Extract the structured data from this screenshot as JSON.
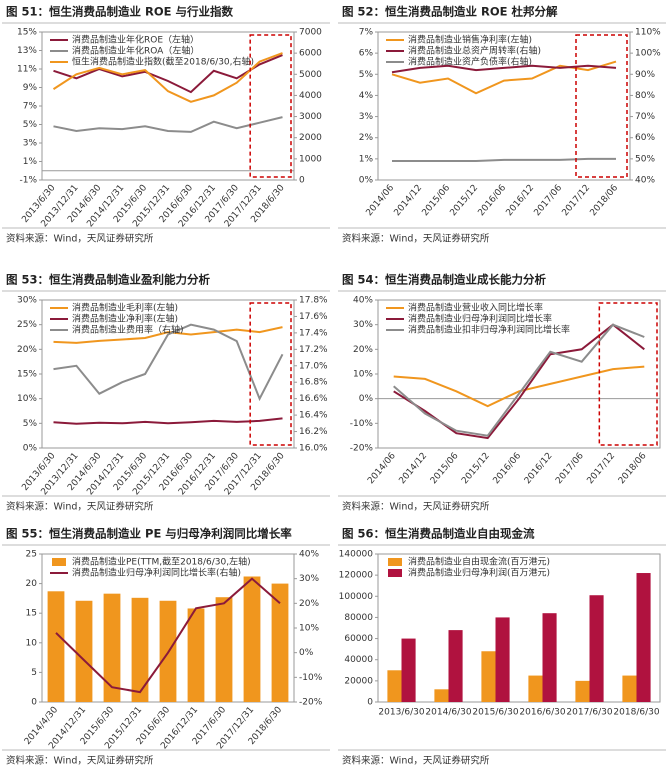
{
  "chart_data": [
    {
      "type": "line",
      "title": "图 51：恒生消费品制造业 ROE 与行业指数",
      "source": "资料来源：Wind，天风证券研究所",
      "categories": [
        "2013/6/30",
        "2013/12/31",
        "2014/6/30",
        "2014/12/31",
        "2015/6/30",
        "2015/12/31",
        "2016/6/30",
        "2016/12/31",
        "2017/6/30",
        "2017/12/31",
        "2018/6/30"
      ],
      "ylim": [
        -1,
        15
      ],
      "yticks": [
        {
          "value": -1,
          "label": "-1%"
        },
        {
          "value": 1,
          "label": "1%"
        },
        {
          "value": 3,
          "label": "3%"
        },
        {
          "value": 5,
          "label": "5%"
        },
        {
          "value": 7,
          "label": "7%"
        },
        {
          "value": 9,
          "label": "9%"
        },
        {
          "value": 11,
          "label": "11%"
        },
        {
          "value": 13,
          "label": "13%"
        },
        {
          "value": 15,
          "label": "15%"
        }
      ],
      "y2lim": [
        0,
        7000
      ],
      "y2ticks": [
        0,
        1000,
        2000,
        3000,
        4000,
        5000,
        6000,
        7000
      ],
      "series": [
        {
          "name": "消费品制造业年化ROE（左轴）",
          "color": "#8b1a3a",
          "values": [
            10.8,
            10.0,
            11.0,
            10.2,
            10.7,
            9.7,
            8.5,
            10.8,
            10.0,
            11.5,
            12.5
          ]
        },
        {
          "name": "消费品制造业年化ROA（左轴）",
          "color": "#8c8c8c",
          "values": [
            4.8,
            4.3,
            4.6,
            4.5,
            4.8,
            4.3,
            4.2,
            5.3,
            4.6,
            5.2,
            5.8
          ]
        },
        {
          "name": "恒生消费品制造业指数(截至2018/6/30,右轴)",
          "color": "#f0961e",
          "axis": "y2",
          "values": [
            4300,
            5000,
            5300,
            5000,
            5200,
            4200,
            3700,
            4000,
            4600,
            5600,
            6000
          ]
        }
      ]
    },
    {
      "type": "line",
      "title": "图 52：恒生消费品制造业 ROE 杜邦分解",
      "source": "资料来源：Wind，天风证券研究所",
      "categories": [
        "2014/06",
        "2014/12",
        "2015/06",
        "2015/12",
        "2016/06",
        "2016/12",
        "2017/06",
        "2017/12",
        "2018/06"
      ],
      "ylim": [
        0,
        7
      ],
      "yticks": [
        {
          "value": 0,
          "label": "0%"
        },
        {
          "value": 1,
          "label": "1%"
        },
        {
          "value": 2,
          "label": "2%"
        },
        {
          "value": 3,
          "label": "3%"
        },
        {
          "value": 4,
          "label": "4%"
        },
        {
          "value": 5,
          "label": "5%"
        },
        {
          "value": 6,
          "label": "6%"
        },
        {
          "value": 7,
          "label": "7%"
        }
      ],
      "y2lim": [
        40,
        110
      ],
      "y2ticks": [
        {
          "value": 40,
          "label": "40%"
        },
        {
          "value": 50,
          "label": "50%"
        },
        {
          "value": 60,
          "label": "60%"
        },
        {
          "value": 70,
          "label": "70%"
        },
        {
          "value": 80,
          "label": "80%"
        },
        {
          "value": 90,
          "label": "90%"
        },
        {
          "value": 100,
          "label": "100%"
        },
        {
          "value": 110,
          "label": "110%"
        }
      ],
      "series": [
        {
          "name": "消费品制造业销售净利率(左轴)",
          "color": "#f0961e",
          "values": [
            5.0,
            4.6,
            4.8,
            4.1,
            4.7,
            4.8,
            5.4,
            5.2,
            5.6
          ]
        },
        {
          "name": "消费品制造业总资产周转率(右轴)",
          "color": "#8b1a3a",
          "axis": "y2",
          "values": [
            91,
            93,
            94,
            92,
            93,
            94,
            93,
            94,
            93
          ]
        },
        {
          "name": "消费品制造业资产负债率(右轴)",
          "color": "#8c8c8c",
          "axis": "y2",
          "values": [
            49,
            49,
            49,
            49,
            49.5,
            49.5,
            49.5,
            50,
            50
          ]
        }
      ]
    },
    {
      "type": "line",
      "title": "图 53：恒生消费品制造业盈利能力分析",
      "source": "资料来源：Wind，天风证券研究所",
      "categories": [
        "2013/6/30",
        "2013/12/31",
        "2014/6/30",
        "2014/12/31",
        "2015/6/30",
        "2015/12/31",
        "2016/6/30",
        "2016/12/31",
        "2017/6/30",
        "2017/12/31",
        "2018/6/30"
      ],
      "ylim": [
        0,
        30
      ],
      "yticks": [
        {
          "value": 0,
          "label": "0%"
        },
        {
          "value": 5,
          "label": "5%"
        },
        {
          "value": 10,
          "label": "10%"
        },
        {
          "value": 15,
          "label": "15%"
        },
        {
          "value": 20,
          "label": "20%"
        },
        {
          "value": 25,
          "label": "25%"
        },
        {
          "value": 30,
          "label": "30%"
        }
      ],
      "y2lim": [
        16.0,
        17.8
      ],
      "y2ticks": [
        {
          "value": 16.0,
          "label": "16.0%"
        },
        {
          "value": 16.2,
          "label": "16.2%"
        },
        {
          "value": 16.4,
          "label": "16.4%"
        },
        {
          "value": 16.6,
          "label": "16.6%"
        },
        {
          "value": 16.8,
          "label": "16.8%"
        },
        {
          "value": 17.0,
          "label": "17.0%"
        },
        {
          "value": 17.2,
          "label": "17.2%"
        },
        {
          "value": 17.4,
          "label": "17.4%"
        },
        {
          "value": 17.6,
          "label": "17.6%"
        },
        {
          "value": 17.8,
          "label": "17.8%"
        }
      ],
      "series": [
        {
          "name": "消费品制造业毛利率(左轴)",
          "color": "#f0961e",
          "values": [
            21.5,
            21.3,
            21.7,
            22.0,
            22.3,
            23.5,
            23.0,
            23.5,
            24.0,
            23.5,
            24.5
          ]
        },
        {
          "name": "消费品制造业净利率(左轴)",
          "color": "#8b1a3a",
          "values": [
            5.2,
            4.9,
            5.1,
            5.0,
            5.3,
            5.0,
            5.2,
            5.5,
            5.3,
            5.5,
            6.0
          ]
        },
        {
          "name": "消费品制造业费用率（右轴)",
          "color": "#8c8c8c",
          "axis": "y2",
          "values": [
            16.96,
            17.0,
            16.66,
            16.8,
            16.9,
            17.38,
            17.5,
            17.44,
            17.3,
            16.6,
            17.14
          ]
        }
      ]
    },
    {
      "type": "line",
      "title": "图 54：恒生消费品制造业成长能力分析",
      "source": "资料来源：Wind，天风证券研究所",
      "categories": [
        "2014/06",
        "2014/12",
        "2015/06",
        "2015/12",
        "2016/06",
        "2016/12",
        "2017/06",
        "2017/12",
        "2018/06"
      ],
      "ylim": [
        -20,
        40
      ],
      "yticks": [
        {
          "value": -20,
          "label": "-20%"
        },
        {
          "value": -10,
          "label": "-10%"
        },
        {
          "value": 0,
          "label": "0%"
        },
        {
          "value": 10,
          "label": "10%"
        },
        {
          "value": 20,
          "label": "20%"
        },
        {
          "value": 30,
          "label": "30%"
        },
        {
          "value": 40,
          "label": "40%"
        }
      ],
      "series": [
        {
          "name": "消费品制造业营业收入同比增长率",
          "color": "#f0961e",
          "values": [
            9,
            8,
            3,
            -3,
            3,
            6,
            9,
            12,
            13
          ]
        },
        {
          "name": "消费品制造业归母净利润同比增长率",
          "color": "#8b1a3a",
          "values": [
            3,
            -5,
            -14,
            -16,
            0,
            18,
            20,
            30,
            20
          ]
        },
        {
          "name": "消费品制造业扣非归母净利润同比增长率",
          "color": "#8c8c8c",
          "values": [
            5,
            -6,
            -13,
            -15,
            2,
            19,
            15,
            30,
            25
          ]
        }
      ]
    },
    {
      "type": "bar",
      "title": "图 55：恒生消费品制造业 PE 与归母净利润同比增长率",
      "source": "资料来源：Wind，天风证券研究所",
      "categories": [
        "2014/4/30",
        "2014/12/31",
        "2015/6/30",
        "2015/12/31",
        "2016/6/30",
        "2016/12/31",
        "2017/6/30",
        "2017/12/31",
        "2018/6/30"
      ],
      "ylim": [
        0,
        25
      ],
      "yticks": [
        0,
        5,
        10,
        15,
        20,
        25
      ],
      "y2lim": [
        -20,
        40
      ],
      "y2ticks": [
        {
          "value": -20,
          "label": "-20%"
        },
        {
          "value": -10,
          "label": "-10%"
        },
        {
          "value": 0,
          "label": "0%"
        },
        {
          "value": 10,
          "label": "10%"
        },
        {
          "value": 20,
          "label": "20%"
        },
        {
          "value": 30,
          "label": "30%"
        },
        {
          "value": 40,
          "label": "40%"
        }
      ],
      "series": [
        {
          "name": "消费品制造业PE(TTM,截至2018/6/30,左轴)",
          "color": "#f0961e",
          "values": [
            18.7,
            17.1,
            18.3,
            17.6,
            17.1,
            15.8,
            17.7,
            21.2,
            20.0
          ]
        },
        {
          "name": "消费品制造业归母净利润同比增长率(右轴)",
          "color": "#8b1a3a",
          "type": "line",
          "axis": "y2",
          "values": [
            8,
            -3,
            -14,
            -16,
            0,
            18,
            20,
            30,
            20
          ]
        }
      ]
    },
    {
      "type": "bar",
      "title": "图 56：恒生消费品制造业自由现金流",
      "source": "资料来源：Wind，天风证券研究所",
      "categories": [
        "2013/6/30",
        "2014/6/30",
        "2015/6/30",
        "2016/6/30",
        "2017/6/30",
        "2018/6/30"
      ],
      "ylim": [
        0,
        140000
      ],
      "yticks": [
        0,
        20000,
        40000,
        60000,
        80000,
        100000,
        120000,
        140000
      ],
      "series": [
        {
          "name": "消费品制造业自由现金流(百万港元)",
          "color": "#f0961e",
          "values": [
            30000,
            12000,
            48000,
            25000,
            20000,
            25000
          ]
        },
        {
          "name": "消费品制造业归母净利润(百万港元)",
          "color": "#b0123f",
          "values": [
            60000,
            68000,
            80000,
            84000,
            101000,
            122000
          ]
        }
      ]
    }
  ]
}
